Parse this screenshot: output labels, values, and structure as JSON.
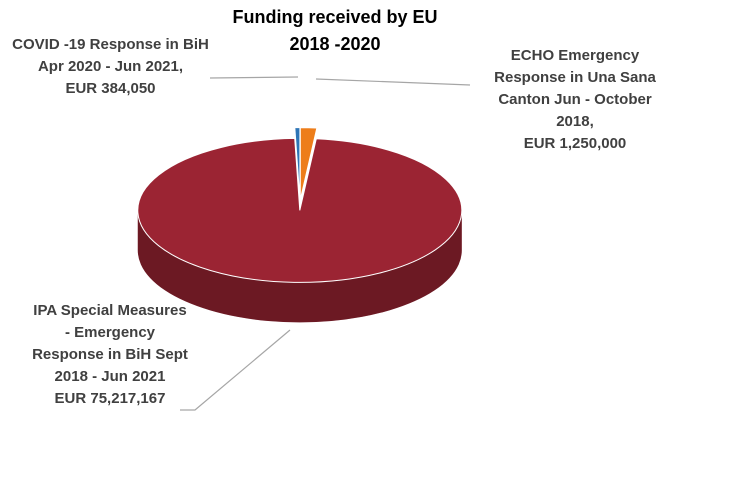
{
  "chart_data": {
    "type": "pie",
    "title": "Funding received by EU 2018 -2020",
    "categories": [
      "COVID -19 Response in BiH Apr 2020 - Jun 2021,",
      "ECHO Emergency Response in Una Sana Canton Jun - October 2018,",
      "IPA Special Measures - Emergency Response in BiH Sept 2018 - Jun 2021"
    ],
    "values": [
      384050,
      1250000,
      75217167
    ],
    "value_labels": [
      "EUR 384,050",
      "EUR 1,250,000",
      "EUR 75,217,167"
    ],
    "colors": [
      "#2e75b6",
      "#ed7d1a",
      "#9b2433"
    ]
  }
}
